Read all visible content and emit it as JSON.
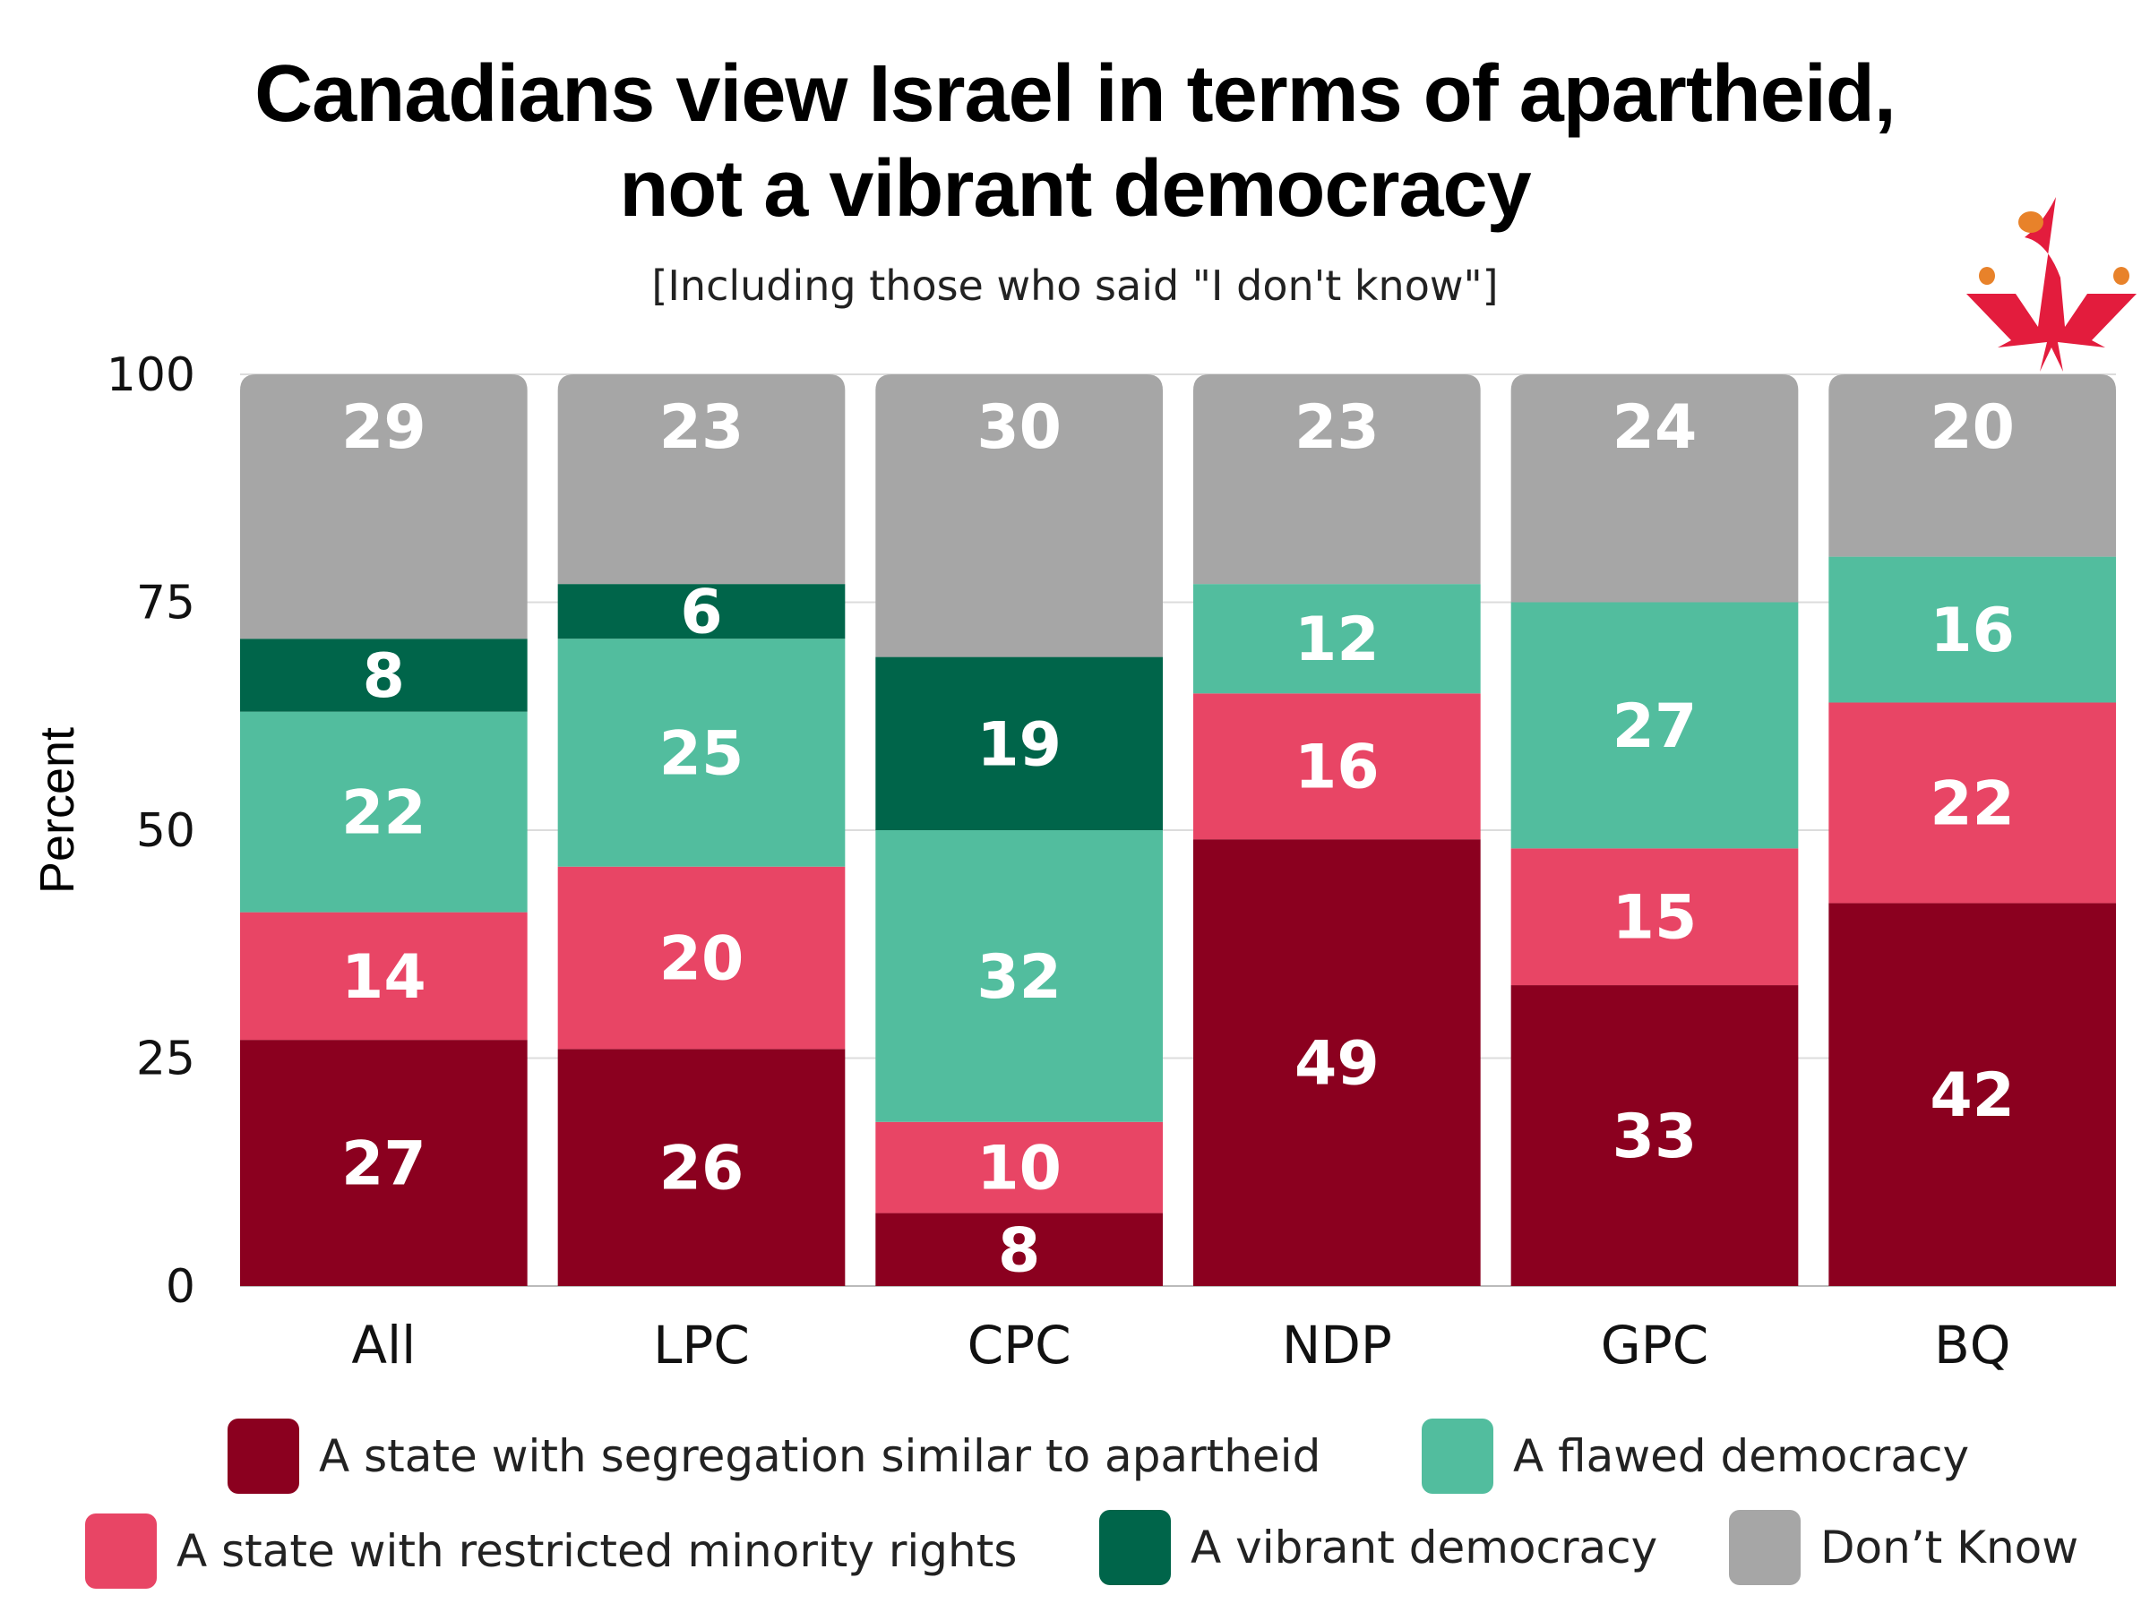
{
  "title_line1": "Canadians view Israel in terms of apartheid,",
  "title_line2": "not a vibrant democracy",
  "subtitle": "[Including those who said \"I don't know\"]",
  "logo": "maple-leaf-people-logo",
  "chart_data": {
    "type": "bar",
    "stacked": true,
    "title": "Canadians view Israel in terms of apartheid, not a vibrant democracy",
    "subtitle": "[Including those who said \"I don't know\"]",
    "xlabel": "",
    "ylabel": "Percent",
    "ylim": [
      0,
      100
    ],
    "yticks": [
      "0",
      "25",
      "50",
      "75",
      "100"
    ],
    "grid": true,
    "legend_position": "bottom",
    "categories": [
      "All",
      "LPC",
      "CPC",
      "NDP",
      "GPC",
      "BQ"
    ],
    "series": [
      {
        "name": "A state with segregation similar to apartheid",
        "color": "#8B001F",
        "values": [
          27,
          26,
          8,
          49,
          33,
          42
        ]
      },
      {
        "name": "A state with restricted minority rights",
        "color": "#E84565",
        "values": [
          14,
          20,
          10,
          16,
          15,
          22
        ]
      },
      {
        "name": "A flawed democracy",
        "color": "#52BD9E",
        "values": [
          22,
          25,
          32,
          12,
          27,
          16
        ]
      },
      {
        "name": "A vibrant democracy",
        "color": "#00654A",
        "values": [
          8,
          6,
          19,
          0,
          0,
          0
        ]
      },
      {
        "name": "Don’t Know",
        "color": "#A6A6A6",
        "values": [
          29,
          23,
          30,
          23,
          24,
          20
        ]
      }
    ]
  }
}
